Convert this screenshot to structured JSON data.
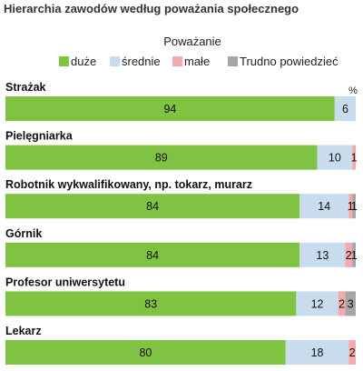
{
  "chart_data": {
    "type": "bar",
    "orientation": "horizontal",
    "stacked": true,
    "title": "Hierarchia zawodów według poważania społecznego",
    "legend_title": "Poważanie",
    "legend_position": "top",
    "unit_label": "%",
    "xlim": [
      0,
      100
    ],
    "grid": false,
    "categories": [
      "Strażak",
      "Pielęgniarka",
      "Robotnik wykwalifikowany, np. tokarz, murarz",
      "Górnik",
      "Profesor uniwersytetu",
      "Lekarz"
    ],
    "series": [
      {
        "name": "duże",
        "color": "#80c342",
        "values": [
          94,
          89,
          84,
          84,
          83,
          80
        ]
      },
      {
        "name": "średnie",
        "color": "#c8dcee",
        "values": [
          6,
          10,
          14,
          13,
          12,
          18
        ]
      },
      {
        "name": "małe",
        "color": "#f4aaaa",
        "values": [
          0,
          1,
          1,
          2,
          2,
          2
        ]
      },
      {
        "name": "Trudno powiedzieć",
        "color": "#a6a6a6",
        "values": [
          0,
          0,
          1,
          1,
          3,
          0
        ]
      }
    ]
  }
}
